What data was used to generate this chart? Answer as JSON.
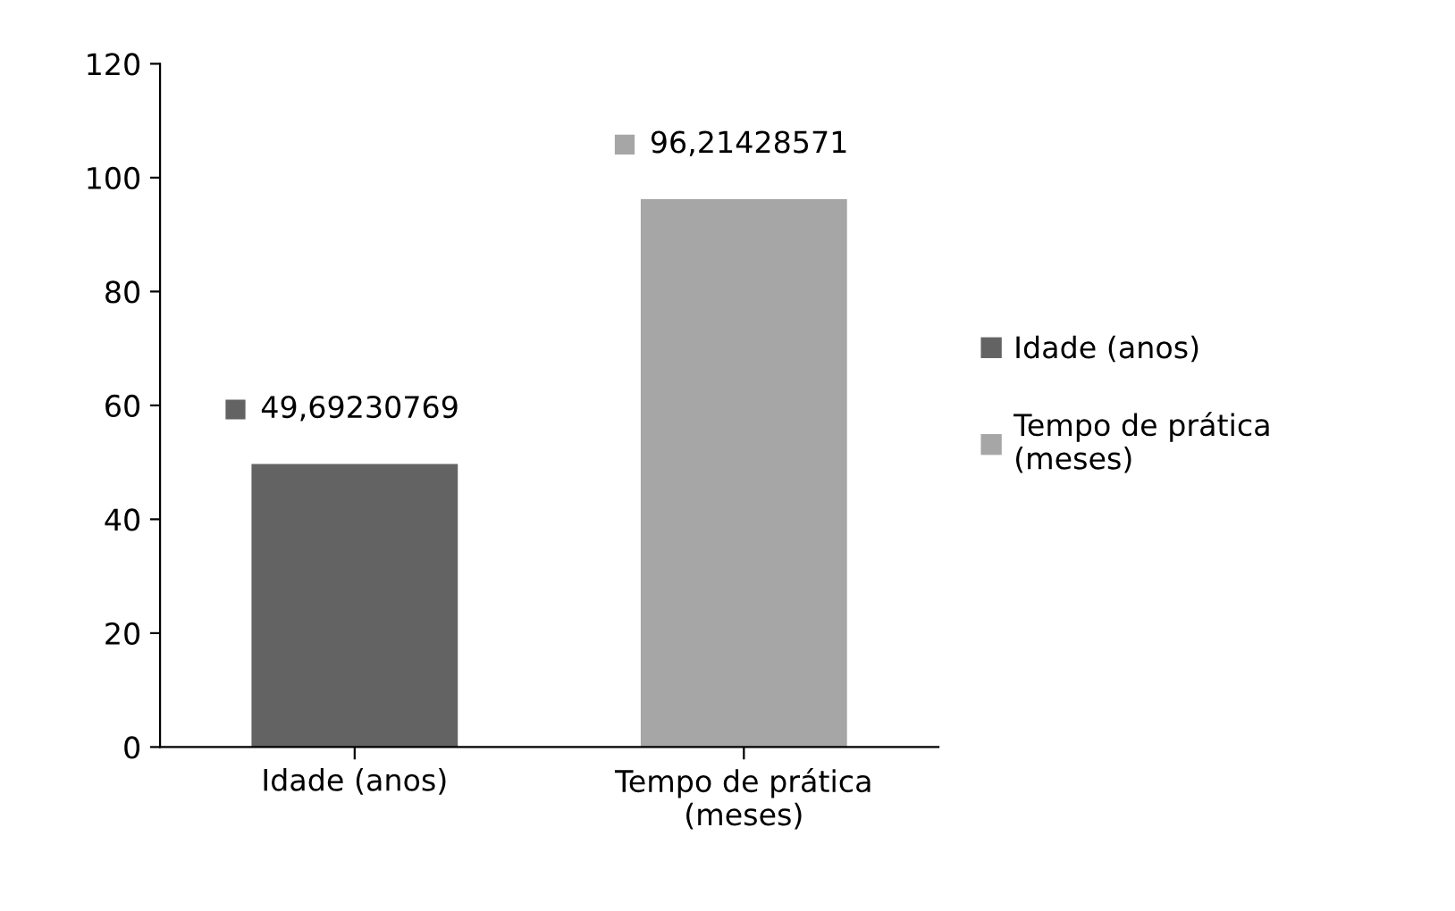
{
  "chart_data": {
    "type": "bar",
    "categories": [
      "Idade (anos)",
      "Tempo de prática (meses)"
    ],
    "series": [
      {
        "name": "Idade (anos)",
        "color": "#636363",
        "values": [
          49.69230769,
          null
        ],
        "value_labels": [
          "49,69230769",
          null
        ]
      },
      {
        "name": "Tempo de prática (meses)",
        "color": "#a6a6a6",
        "values": [
          null,
          96.21428571
        ],
        "value_labels": [
          null,
          "96,21428571"
        ]
      }
    ],
    "ylim": [
      0,
      120
    ],
    "yticks": [
      0,
      20,
      40,
      60,
      80,
      100,
      120
    ],
    "grid": false,
    "legend": "right"
  }
}
